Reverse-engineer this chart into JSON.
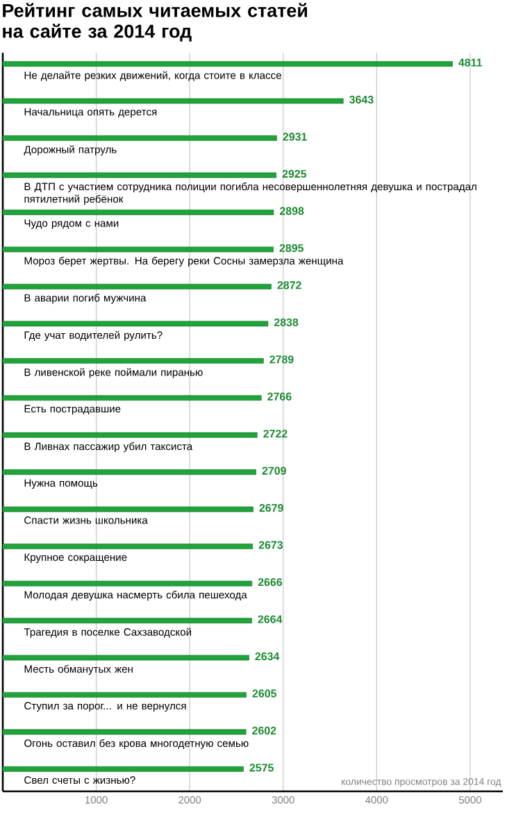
{
  "chart_data": {
    "type": "bar",
    "orientation": "horizontal",
    "title": "Рейтинг самых читаемых статей на сайте за 2014 год",
    "xlabel": "количество просмотров за 2014 год",
    "categories": [
      "Не делайте резких движений, когда стоите в классе",
      "Начальница опять дерется",
      "Дорожный патруль",
      "В ДТП с участием сотрудника полиции погибла несовершеннолетняя девушка и пострадал пятилетний ребёнок",
      "Чудо рядом с нами",
      "Мороз берет жертвы. На берегу реки Сосны замерзла женщина",
      "В аварии погиб мужчина",
      "Где учат водителей рулить?",
      "В ливенской реке поймали пиранью",
      "Есть пострадавшие",
      "В Ливнах пассажир убил таксиста",
      "Нужна помощь",
      "Спасти жизнь школьника",
      "Крупное сокращение",
      "Молодая девушка насмерть сбила пешехода",
      "Трагедия в поселке Сахзаводской",
      "Месть обманутых жен",
      "Ступил за порог... и не вернулся",
      "Огонь оставил без крова многодетную семью",
      "Свел счеты с жизнью?"
    ],
    "values": [
      4811,
      3643,
      2931,
      2925,
      2898,
      2895,
      2872,
      2838,
      2789,
      2766,
      2722,
      2709,
      2679,
      2673,
      2666,
      2664,
      2634,
      2605,
      2602,
      2575
    ],
    "value_labels": [
      "4811",
      "3643",
      "2931",
      "2925",
      "2898",
      "2895",
      "2872",
      "2838",
      "2789",
      "2766",
      "2722",
      "2709",
      "2679",
      "2673",
      "2666",
      "2664",
      "2634",
      "2605",
      "2602",
      "2575"
    ],
    "color": "#1fa33a",
    "xlim": [
      0,
      5350
    ],
    "xticks": [
      1000,
      2000,
      3000,
      4000,
      5000
    ],
    "grid": "x"
  }
}
